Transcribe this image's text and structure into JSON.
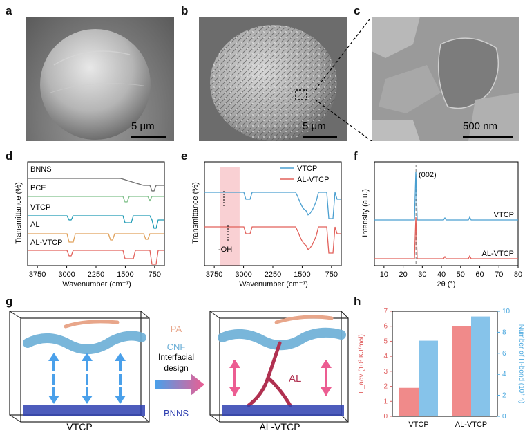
{
  "panels": {
    "a": {
      "label": "a",
      "scale": "5 μm"
    },
    "b": {
      "label": "b",
      "scale": "5 μm"
    },
    "c": {
      "label": "c",
      "scale": "500 nm"
    },
    "d": {
      "label": "d"
    },
    "e": {
      "label": "e"
    },
    "f": {
      "label": "f"
    },
    "g": {
      "label": "g"
    },
    "h": {
      "label": "h"
    }
  },
  "chart_data": [
    {
      "id": "d",
      "type": "line",
      "xlabel": "Wavenumber (cm⁻¹)",
      "ylabel": "Transmittance (%)",
      "x_ticks": [
        "3750",
        "3000",
        "2250",
        "1500",
        "750"
      ],
      "xlim": [
        4000,
        500
      ],
      "x_reversed": true,
      "series": [
        {
          "name": "BNNS",
          "color": "#6b6b6b"
        },
        {
          "name": "PCE",
          "color": "#7fc08a"
        },
        {
          "name": "VTCP",
          "color": "#1f9bb5"
        },
        {
          "name": "AL",
          "color": "#e0a15a"
        },
        {
          "name": "AL-VTCP",
          "color": "#e2605a"
        }
      ]
    },
    {
      "id": "e",
      "type": "line",
      "xlabel": "Wavenumber (cm⁻¹)",
      "ylabel": "Transmittance (%)",
      "x_ticks": [
        "3750",
        "3000",
        "2250",
        "1500",
        "750"
      ],
      "xlim": [
        4000,
        500
      ],
      "x_reversed": true,
      "highlight_range": [
        3100,
        3600
      ],
      "annotation": "-OH",
      "series": [
        {
          "name": "VTCP",
          "color": "#4a9fd0"
        },
        {
          "name": "AL-VTCP",
          "color": "#e2605a"
        }
      ]
    },
    {
      "id": "f",
      "type": "line",
      "xlabel": "2θ (°)",
      "ylabel": "Intensity (a.u.)",
      "x_ticks": [
        "10",
        "20",
        "30",
        "40",
        "50",
        "60",
        "70",
        "80"
      ],
      "xlim": [
        5,
        80
      ],
      "peak_label": "(002)",
      "peak_x": 26.7,
      "series": [
        {
          "name": "VTCP",
          "color": "#4a9fd0"
        },
        {
          "name": "AL-VTCP",
          "color": "#e2605a"
        }
      ]
    },
    {
      "id": "h",
      "type": "bar",
      "categories": [
        "VTCP",
        "AL-VTCP"
      ],
      "series": [
        {
          "name": "E_adv",
          "axis": "left",
          "values": [
            1.9,
            6.0
          ],
          "color": "#f08a8a"
        },
        {
          "name": "Number of H-bond",
          "axis": "right",
          "values": [
            7.2,
            9.5
          ],
          "color": "#86c3ea"
        }
      ],
      "y_left": {
        "label": "E_adv (10² KJ/mol)",
        "lim": [
          0,
          7
        ],
        "ticks": [
          "0",
          "1",
          "2",
          "3",
          "4",
          "5",
          "6",
          "7"
        ],
        "color": "#e06060"
      },
      "y_right": {
        "label": "Number of H-bond (10² n)",
        "lim": [
          0,
          10
        ],
        "ticks": [
          "0",
          "2",
          "4",
          "6",
          "8",
          "10"
        ],
        "color": "#4aa8df"
      }
    }
  ],
  "schematic": {
    "left_caption": "VTCP",
    "right_caption": "AL-VTCP",
    "legend_pa": "PA",
    "legend_cnf": "CNF",
    "legend_bnns": "BNNS",
    "arrow_text_1": "Interfacial",
    "arrow_text_2": "design",
    "al_label": "AL",
    "colors": {
      "pa": "#e8a68a",
      "cnf": "#6aaed6",
      "bnns": "#2e3fb0",
      "al": "#b03050",
      "blue_arrow": "#4aa0ea",
      "pink_arrow": "#ec5d92"
    }
  }
}
